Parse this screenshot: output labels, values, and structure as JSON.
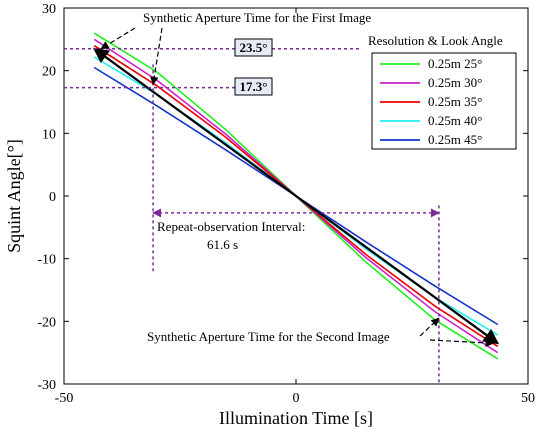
{
  "chart_data": {
    "type": "line",
    "xlabel": "Illumination Time [s]",
    "ylabel": "Squint Angle[°]",
    "xlim": [
      -50,
      50
    ],
    "ylim": [
      -30,
      30
    ],
    "xticks": [
      -50,
      0,
      50
    ],
    "yticks": [
      -30,
      -20,
      -10,
      0,
      10,
      20,
      30
    ],
    "legend": {
      "title": "Resolution & Look Angle",
      "placement": "top-right"
    },
    "series": [
      {
        "name": "0.25m 25°",
        "color": "#22ee22",
        "x": [
          -43.5,
          -30,
          -15,
          0,
          15,
          30,
          43.5
        ],
        "y": [
          26.0,
          19.8,
          10.5,
          0,
          -10.5,
          -19.8,
          -26.0
        ]
      },
      {
        "name": "0.25m 30°",
        "color": "#cc22cc",
        "x": [
          -43.5,
          -30,
          -15,
          0,
          15,
          30,
          43.5
        ],
        "y": [
          25.0,
          18.5,
          9.8,
          0,
          -9.8,
          -18.5,
          -25.0
        ]
      },
      {
        "name": "0.25m 35°",
        "color": "#ee0000",
        "x": [
          -43.5,
          -30,
          -15,
          0,
          15,
          30,
          43.5
        ],
        "y": [
          24.0,
          17.6,
          9.3,
          0,
          -9.3,
          -17.6,
          -24.0
        ]
      },
      {
        "name": "0.25m 40°",
        "color": "#22eeee",
        "x": [
          -43.5,
          -30,
          -15,
          0,
          15,
          30,
          43.5
        ],
        "y": [
          22.2,
          16.2,
          8.4,
          0,
          -8.4,
          -16.2,
          -22.2
        ]
      },
      {
        "name": "0.25m 45°",
        "color": "#1133cc",
        "x": [
          -43.5,
          -30,
          -15,
          0,
          15,
          30,
          43.5
        ],
        "y": [
          20.5,
          14.4,
          7.3,
          0,
          -7.3,
          -14.4,
          -20.5
        ]
      },
      {
        "name": "",
        "color": "#000000",
        "x": [
          -43.5,
          43.5
        ],
        "y": [
          23.5,
          -23.5
        ]
      }
    ],
    "annotations": {
      "first_image": "Synthetic Aperture Time for the First Image",
      "second_image": "Synthetic Aperture Time for the Second Image",
      "interval_line1": "Repeat-observation Interval:",
      "interval_line2": "61.6 s",
      "angle_high": "23.5°",
      "angle_low": "17.3°"
    },
    "markers": {
      "angle_high_value": 23.5,
      "angle_low_value": 17.3,
      "interval_start": -30.8,
      "interval_end": 30.8
    }
  }
}
